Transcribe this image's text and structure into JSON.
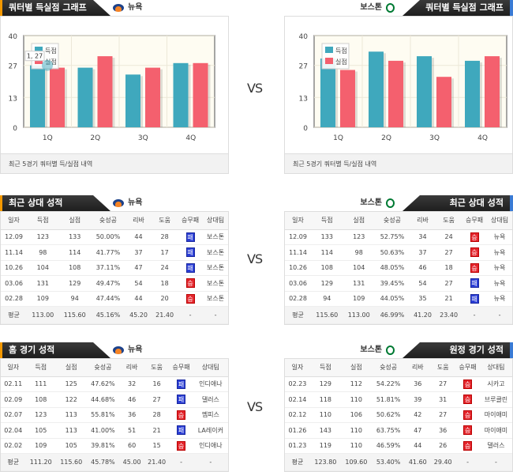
{
  "vs_label": "VS",
  "note": "최근 5경기 쿼터별 득/실점 내역",
  "teams": {
    "left": "뉴욕",
    "right": "보스톤"
  },
  "colors": {
    "scored": "#3fa8bd",
    "allowed": "#f4606e",
    "win": "#e4262d",
    "loss": "#2b3fd6"
  },
  "chart_data": [
    {
      "type": "bar",
      "title": "쿼터별 득실점 그래프",
      "team": "뉴욕",
      "categories": [
        "1Q",
        "2Q",
        "3Q",
        "4Q"
      ],
      "series": [
        {
          "name": "득점",
          "values": [
            27,
            26,
            23,
            28
          ]
        },
        {
          "name": "실점",
          "values": [
            26,
            31,
            26,
            28
          ]
        }
      ],
      "ylim": [
        0,
        40
      ],
      "yticks": [
        "0",
        "13",
        "27",
        "40"
      ],
      "legend": "top-left",
      "tooltip": "1, 27"
    },
    {
      "type": "bar",
      "title": "쿼터별 득실점 그래프",
      "team": "보스톤",
      "categories": [
        "1Q",
        "2Q",
        "3Q",
        "4Q"
      ],
      "series": [
        {
          "name": "득점",
          "values": [
            30,
            33,
            31,
            29
          ]
        },
        {
          "name": "실점",
          "values": [
            25,
            29,
            22,
            31
          ]
        }
      ],
      "ylim": [
        0,
        40
      ],
      "yticks": [
        "0",
        "13",
        "27",
        "40"
      ],
      "legend": "top-left"
    }
  ],
  "columns": [
    "일자",
    "득점",
    "실점",
    "슛성공",
    "리바",
    "도움",
    "승무패",
    "상대팀"
  ],
  "tables": {
    "recent_left": {
      "title": "최근 상대 성적",
      "team": "뉴욕",
      "rows": [
        [
          "12.09",
          "123",
          "133",
          "50.00%",
          "44",
          "28",
          "패",
          "보스톤"
        ],
        [
          "11.14",
          "98",
          "114",
          "41.77%",
          "37",
          "17",
          "패",
          "보스톤"
        ],
        [
          "10.26",
          "104",
          "108",
          "37.11%",
          "47",
          "24",
          "패",
          "보스톤"
        ],
        [
          "03.06",
          "131",
          "129",
          "49.47%",
          "54",
          "18",
          "승",
          "보스톤"
        ],
        [
          "02.28",
          "109",
          "94",
          "47.44%",
          "44",
          "20",
          "승",
          "보스톤"
        ]
      ],
      "avg": [
        "평균",
        "113.00",
        "115.60",
        "45.16%",
        "45.20",
        "21.40",
        "-",
        "-"
      ]
    },
    "recent_right": {
      "title": "최근 상대 성적",
      "team": "보스톤",
      "rows": [
        [
          "12.09",
          "133",
          "123",
          "52.75%",
          "34",
          "24",
          "승",
          "뉴욕"
        ],
        [
          "11.14",
          "114",
          "98",
          "50.63%",
          "37",
          "27",
          "승",
          "뉴욕"
        ],
        [
          "10.26",
          "108",
          "104",
          "48.05%",
          "46",
          "18",
          "승",
          "뉴욕"
        ],
        [
          "03.06",
          "129",
          "131",
          "39.45%",
          "54",
          "27",
          "패",
          "뉴욕"
        ],
        [
          "02.28",
          "94",
          "109",
          "44.05%",
          "35",
          "21",
          "패",
          "뉴욕"
        ]
      ],
      "avg": [
        "평균",
        "115.60",
        "113.00",
        "46.99%",
        "41.20",
        "23.40",
        "-",
        "-"
      ]
    },
    "home_left": {
      "title": "홈 경기 성적",
      "team": "뉴욕",
      "rows": [
        [
          "02.11",
          "111",
          "125",
          "47.62%",
          "32",
          "16",
          "패",
          "인디애나"
        ],
        [
          "02.09",
          "108",
          "122",
          "44.68%",
          "46",
          "27",
          "패",
          "댈러스"
        ],
        [
          "02.07",
          "123",
          "113",
          "55.81%",
          "36",
          "28",
          "승",
          "멤피스"
        ],
        [
          "02.04",
          "105",
          "113",
          "41.00%",
          "51",
          "21",
          "패",
          "LA레이커"
        ],
        [
          "02.02",
          "109",
          "105",
          "39.81%",
          "60",
          "15",
          "승",
          "인디애나"
        ]
      ],
      "avg": [
        "평균",
        "111.20",
        "115.60",
        "45.78%",
        "45.00",
        "21.40",
        "-",
        "-"
      ]
    },
    "away_right": {
      "title": "원정 경기 성적",
      "team": "보스톤",
      "rows": [
        [
          "02.23",
          "129",
          "112",
          "54.22%",
          "36",
          "27",
          "승",
          "시카고"
        ],
        [
          "02.14",
          "118",
          "110",
          "51.81%",
          "39",
          "31",
          "승",
          "브루클린"
        ],
        [
          "02.12",
          "110",
          "106",
          "50.62%",
          "42",
          "27",
          "승",
          "마이애미"
        ],
        [
          "01.26",
          "143",
          "110",
          "63.75%",
          "47",
          "36",
          "승",
          "마이애미"
        ],
        [
          "01.23",
          "119",
          "110",
          "46.59%",
          "44",
          "26",
          "승",
          "댈러스"
        ]
      ],
      "avg": [
        "평균",
        "123.80",
        "109.60",
        "53.40%",
        "41.60",
        "29.40",
        "-",
        "-"
      ]
    }
  }
}
